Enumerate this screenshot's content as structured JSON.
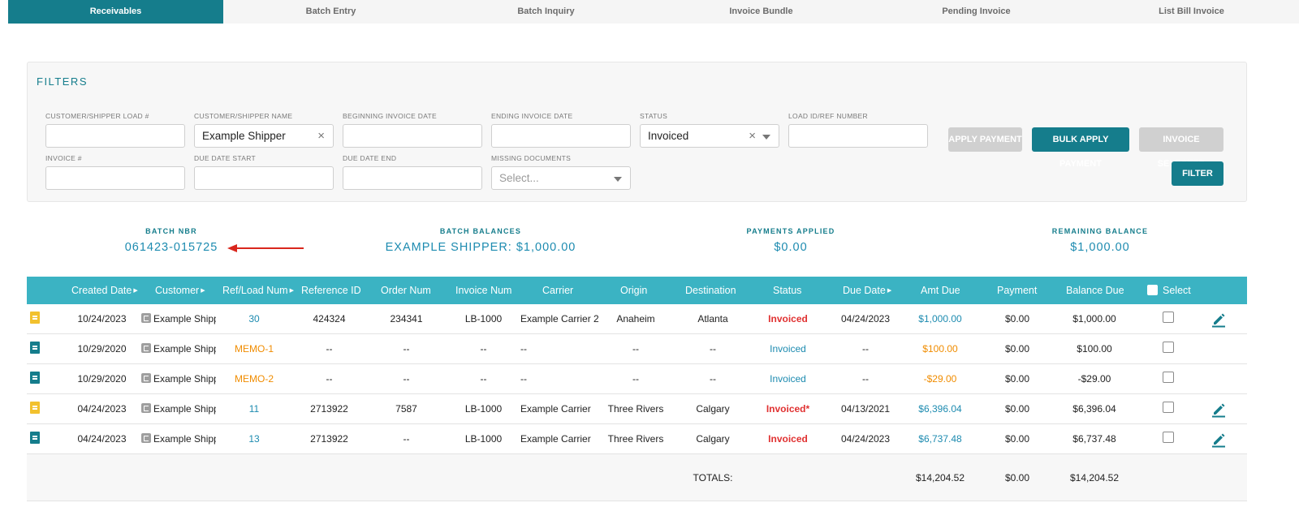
{
  "tabs": [
    "Receivables",
    "Batch Entry",
    "Batch Inquiry",
    "Invoice Bundle",
    "Pending Invoice",
    "List Bill Invoice"
  ],
  "filters": {
    "title": "FILTERS",
    "customer_load_label": "CUSTOMER/SHIPPER LOAD #",
    "customer_load_value": "",
    "customer_name_label": "CUSTOMER/SHIPPER NAME",
    "customer_name_value": "Example Shipper",
    "begin_date_label": "BEGINNING INVOICE DATE",
    "begin_date_value": "",
    "end_date_label": "ENDING INVOICE DATE",
    "end_date_value": "",
    "status_label": "STATUS",
    "status_value": "Invoiced",
    "load_id_label": "LOAD ID/REF NUMBER",
    "load_id_value": "",
    "invoice_label": "INVOICE #",
    "invoice_value": "",
    "due_start_label": "DUE DATE START",
    "due_start_value": "",
    "due_end_label": "DUE DATE END",
    "due_end_value": "",
    "missing_docs_label": "MISSING DOCUMENTS",
    "missing_docs_placeholder": "Select...",
    "clear_glyph": "×"
  },
  "buttons": {
    "apply_payment": "APPLY PAYMENT",
    "bulk_apply_payment": "BULK APPLY PAYMENT",
    "invoice_selected": "INVOICE SELECTED",
    "filter": "FILTER"
  },
  "summary": {
    "batch_nbr_label": "BATCH NBR",
    "batch_nbr_value": "061423-015725",
    "batch_balances_label": "BATCH BALANCES",
    "batch_balances_value": "EXAMPLE SHIPPER: $1,000.00",
    "payments_applied_label": "PAYMENTS APPLIED",
    "payments_applied_value": "$0.00",
    "remaining_balance_label": "REMAINING BALANCE",
    "remaining_balance_value": "$1,000.00"
  },
  "table": {
    "headers": {
      "created_date": "Created Date",
      "customer": "Customer",
      "ref_load": "Ref/Load Num",
      "reference_id": "Reference ID",
      "order_num": "Order Num",
      "invoice_num": "Invoice Num",
      "carrier": "Carrier",
      "origin": "Origin",
      "destination": "Destination",
      "status": "Status",
      "due_date": "Due Date",
      "amt_due": "Amt Due",
      "payment": "Payment",
      "balance_due": "Balance Due",
      "select": "Select"
    },
    "sort_glyph": "▶",
    "rows": [
      {
        "doc_color": "#f2c12e",
        "created": "10/24/2023",
        "customer": "Example Shipper",
        "ref": "30",
        "ref_color": "#1d8bb0",
        "reference_id": "424324",
        "order": "234341",
        "invoice": "LB-1000",
        "carrier": "Example Carrier 2",
        "origin": "Anaheim",
        "destination": "Atlanta",
        "status": "Invoiced",
        "status_color": "#e03131",
        "status_bold": true,
        "due": "04/24/2023",
        "amt_due": "$1,000.00",
        "amt_color": "#1d8bb0",
        "payment": "$0.00",
        "balance": "$1,000.00",
        "editable": true
      },
      {
        "doc_color": "#157d8c",
        "created": "10/29/2020",
        "customer": "Example Shipper",
        "ref": "MEMO-1",
        "ref_color": "#f08c00",
        "reference_id": "--",
        "order": "--",
        "invoice": "--",
        "carrier": "--",
        "origin": "--",
        "destination": "--",
        "status": "Invoiced",
        "status_color": "#1d8bb0",
        "status_bold": false,
        "due": "--",
        "amt_due": "$100.00",
        "amt_color": "#f08c00",
        "payment": "$0.00",
        "balance": "$100.00",
        "editable": false
      },
      {
        "doc_color": "#157d8c",
        "created": "10/29/2020",
        "customer": "Example Shipper",
        "ref": "MEMO-2",
        "ref_color": "#f08c00",
        "reference_id": "--",
        "order": "--",
        "invoice": "--",
        "carrier": "--",
        "origin": "--",
        "destination": "--",
        "status": "Invoiced",
        "status_color": "#1d8bb0",
        "status_bold": false,
        "due": "--",
        "amt_due": "-$29.00",
        "amt_color": "#f08c00",
        "payment": "$0.00",
        "balance": "-$29.00",
        "editable": false
      },
      {
        "doc_color": "#f2c12e",
        "created": "04/24/2023",
        "customer": "Example Shipper",
        "ref": "11",
        "ref_color": "#1d8bb0",
        "reference_id": "2713922",
        "order": "7587",
        "invoice": "LB-1000",
        "carrier": "Example Carrier",
        "origin": "Three Rivers",
        "destination": "Calgary",
        "status": "Invoiced*",
        "status_color": "#e03131",
        "status_bold": true,
        "due": "04/13/2021",
        "amt_due": "$6,396.04",
        "amt_color": "#1d8bb0",
        "payment": "$0.00",
        "balance": "$6,396.04",
        "editable": true
      },
      {
        "doc_color": "#157d8c",
        "created": "04/24/2023",
        "customer": "Example Shipper",
        "ref": "13",
        "ref_color": "#1d8bb0",
        "reference_id": "2713922",
        "order": "--",
        "invoice": "LB-1000",
        "carrier": "Example Carrier",
        "origin": "Three Rivers",
        "destination": "Calgary",
        "status": "Invoiced",
        "status_color": "#e03131",
        "status_bold": true,
        "due": "04/24/2023",
        "amt_due": "$6,737.48",
        "amt_color": "#1d8bb0",
        "payment": "$0.00",
        "balance": "$6,737.48",
        "editable": true
      }
    ],
    "totals": {
      "label": "TOTALS:",
      "amt_due": "$14,204.52",
      "payment": "$0.00",
      "balance": "$14,204.52"
    }
  },
  "colors": {
    "brand": "#157d8c",
    "header": "#3bb3c3",
    "link": "#1d8bb0",
    "alert": "#e03131",
    "memo": "#f08c00",
    "annotation_arrow": "#d9271d"
  }
}
